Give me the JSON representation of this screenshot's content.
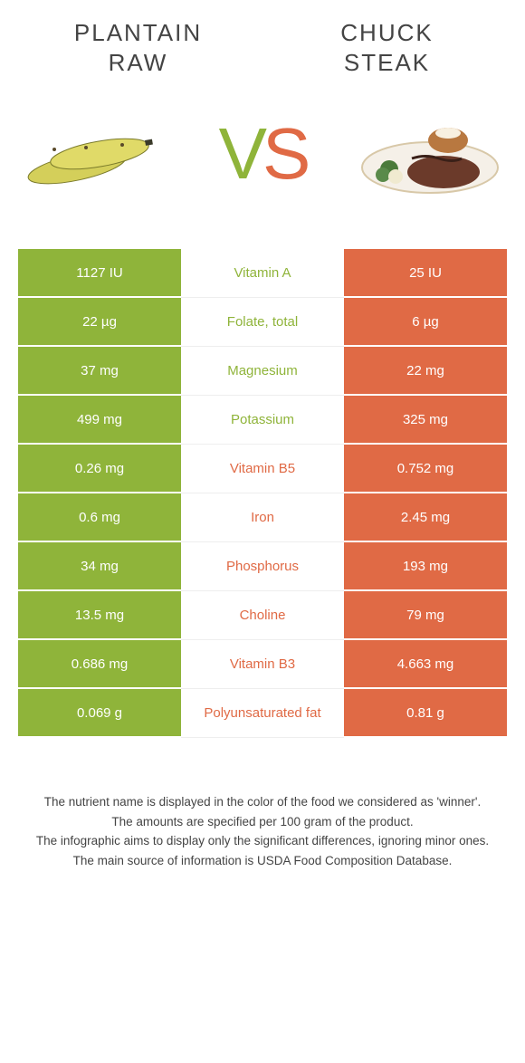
{
  "left": {
    "title": "PLANTAIN\nRAW"
  },
  "right": {
    "title": "CHUCK\nSTEAK"
  },
  "vs": {
    "v": "V",
    "s": "S"
  },
  "colors": {
    "left": "#8fb43a",
    "right": "#e06a45",
    "text": "#444"
  },
  "rows": [
    {
      "l": "1127 IU",
      "m": "Vitamin A",
      "r": "25 IU",
      "winner": "left"
    },
    {
      "l": "22 µg",
      "m": "Folate, total",
      "r": "6 µg",
      "winner": "left"
    },
    {
      "l": "37 mg",
      "m": "Magnesium",
      "r": "22 mg",
      "winner": "left"
    },
    {
      "l": "499 mg",
      "m": "Potassium",
      "r": "325 mg",
      "winner": "left"
    },
    {
      "l": "0.26 mg",
      "m": "Vitamin B5",
      "r": "0.752 mg",
      "winner": "right"
    },
    {
      "l": "0.6 mg",
      "m": "Iron",
      "r": "2.45 mg",
      "winner": "right"
    },
    {
      "l": "34 mg",
      "m": "Phosphorus",
      "r": "193 mg",
      "winner": "right"
    },
    {
      "l": "13.5 mg",
      "m": "Choline",
      "r": "79 mg",
      "winner": "right"
    },
    {
      "l": "0.686 mg",
      "m": "Vitamin B3",
      "r": "4.663 mg",
      "winner": "right"
    },
    {
      "l": "0.069 g",
      "m": "Polyunsaturated fat",
      "r": "0.81 g",
      "winner": "right"
    }
  ],
  "footer": {
    "l1": "The nutrient name is displayed in the color of the food we considered as 'winner'.",
    "l2": "The amounts are specified per 100 gram of the product.",
    "l3": "The infographic aims to display only the significant differences, ignoring minor ones.",
    "l4": "The main source of information is USDA Food Composition Database."
  }
}
